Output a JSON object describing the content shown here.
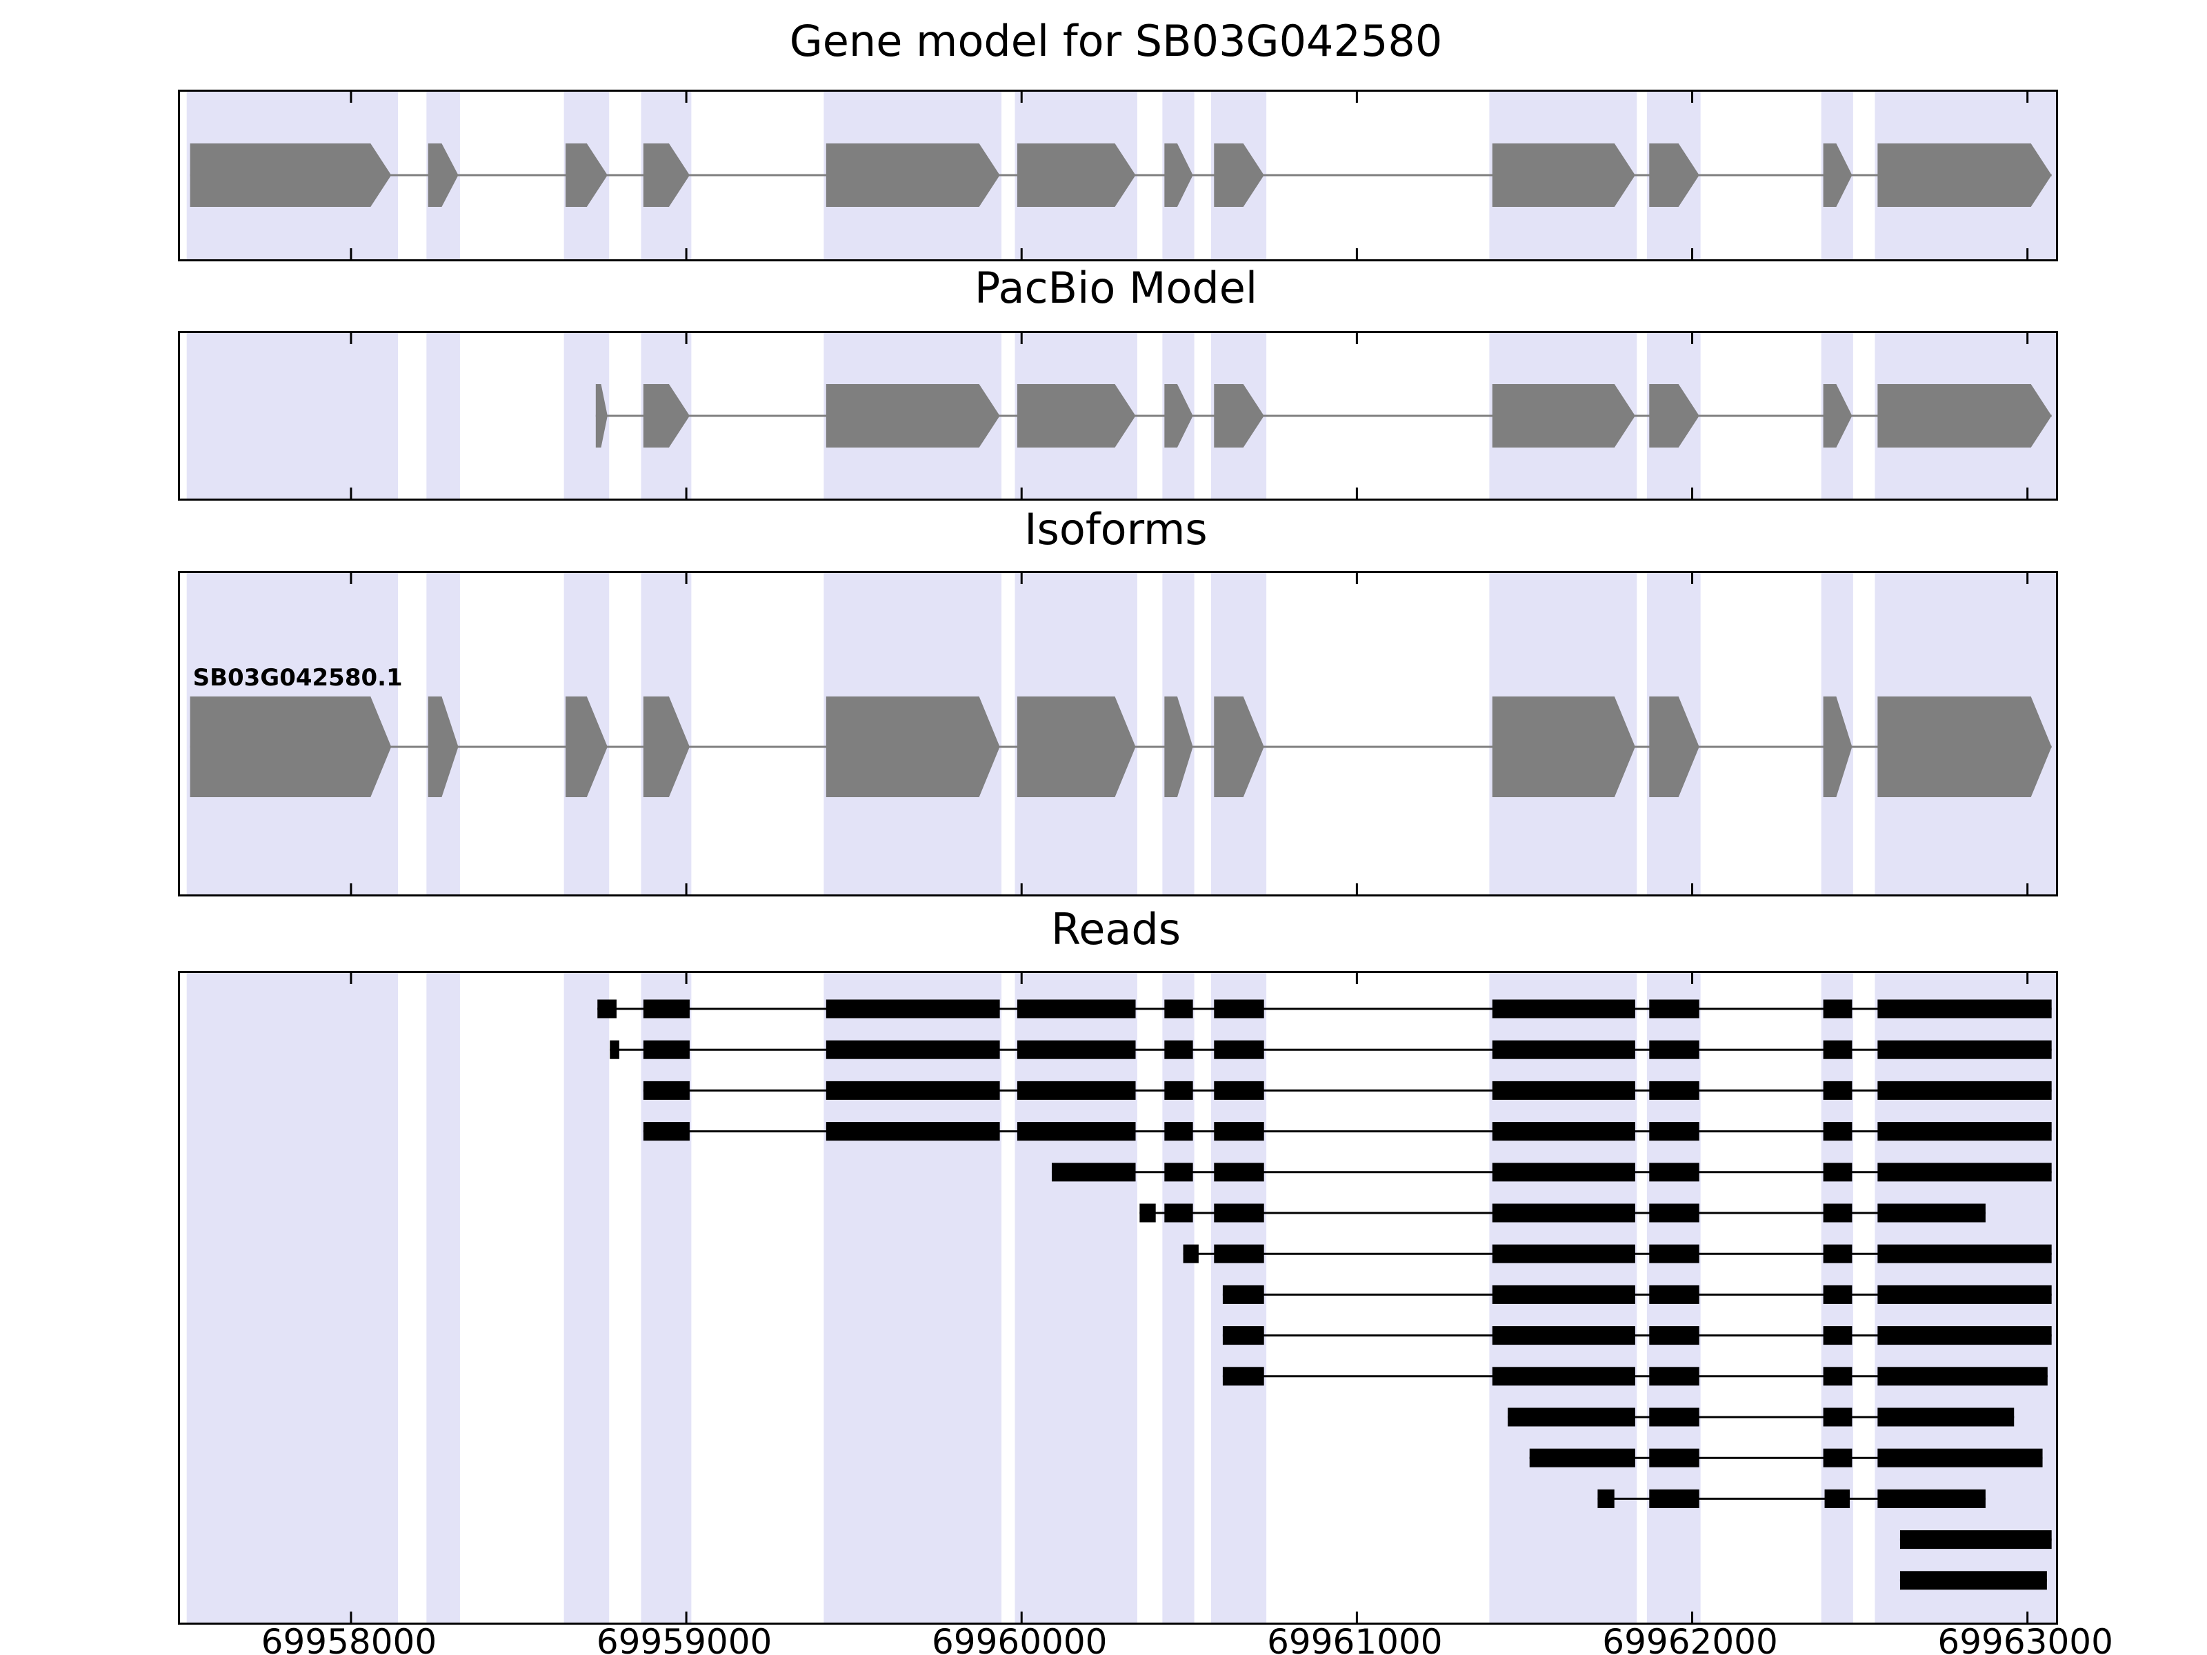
{
  "chart_data": {
    "type": "genome-tracks",
    "description": "Genome browser style figure with four stacked tracks sharing one x axis of genomic coordinates",
    "colors": {
      "band": "#e3e3f7",
      "exon": "#7f7f7f",
      "read": "#000000",
      "frame": "#000000",
      "background": "#ffffff"
    },
    "x_axis": {
      "xmin": 69957490,
      "xmax": 69963085,
      "ticks": [
        69958000,
        69959000,
        69960000,
        69961000,
        69962000,
        69963000
      ],
      "tick_labels": [
        "69958000",
        "69959000",
        "69960000",
        "69961000",
        "69962000",
        "69963000"
      ]
    },
    "bands": [
      [
        69957510,
        69958140
      ],
      [
        69958225,
        69958325
      ],
      [
        69958635,
        69958770
      ],
      [
        69958865,
        69959015
      ],
      [
        69959410,
        69959940
      ],
      [
        69959980,
        69960345
      ],
      [
        69960420,
        69960515
      ],
      [
        69960565,
        69960730
      ],
      [
        69961395,
        69961835
      ],
      [
        69961865,
        69962025
      ],
      [
        69962385,
        69962480
      ],
      [
        69962545,
        69963085
      ]
    ],
    "panels": [
      {
        "id": "gene",
        "title": "Gene model for SB03G042580",
        "type": "model",
        "strand": "+",
        "exons": [
          [
            69957520,
            69958120
          ],
          [
            69958230,
            69958320
          ],
          [
            69958640,
            69958765
          ],
          [
            69958872,
            69959010
          ],
          [
            69959417,
            69959935
          ],
          [
            69959987,
            69960340
          ],
          [
            69960426,
            69960511
          ],
          [
            69960574,
            69960723
          ],
          [
            69961404,
            69961830
          ],
          [
            69961872,
            69962021
          ],
          [
            69962391,
            69962477
          ],
          [
            69962553,
            69963072
          ]
        ]
      },
      {
        "id": "pacbio",
        "title": "PacBio Model",
        "type": "model",
        "strand": "+",
        "exons": [
          [
            69958730,
            69958765
          ],
          [
            69958872,
            69959010
          ],
          [
            69959417,
            69959935
          ],
          [
            69959987,
            69960340
          ],
          [
            69960426,
            69960511
          ],
          [
            69960574,
            69960723
          ],
          [
            69961404,
            69961830
          ],
          [
            69961872,
            69962021
          ],
          [
            69962391,
            69962477
          ],
          [
            69962553,
            69963072
          ]
        ]
      },
      {
        "id": "isoforms",
        "title": "Isoforms",
        "type": "model",
        "strand": "+",
        "label": "SB03G042580.1",
        "exons": [
          [
            69957520,
            69958120
          ],
          [
            69958230,
            69958320
          ],
          [
            69958640,
            69958765
          ],
          [
            69958872,
            69959010
          ],
          [
            69959417,
            69959935
          ],
          [
            69959987,
            69960340
          ],
          [
            69960426,
            69960511
          ],
          [
            69960574,
            69960723
          ],
          [
            69961404,
            69961830
          ],
          [
            69961872,
            69962021
          ],
          [
            69962391,
            69962477
          ],
          [
            69962553,
            69963072
          ]
        ]
      },
      {
        "id": "reads",
        "title": "Reads",
        "type": "reads",
        "reads": [
          {
            "blocks": [
              [
                69958735,
                69958792
              ],
              [
                69958872,
                69959010
              ],
              [
                69959417,
                69959935
              ],
              [
                69959987,
                69960340
              ],
              [
                69960426,
                69960511
              ],
              [
                69960574,
                69960723
              ],
              [
                69961404,
                69961830
              ],
              [
                69961872,
                69962021
              ],
              [
                69962391,
                69962477
              ],
              [
                69962553,
                69963072
              ]
            ]
          },
          {
            "blocks": [
              [
                69958772,
                69958800
              ],
              [
                69958872,
                69959010
              ],
              [
                69959417,
                69959935
              ],
              [
                69959987,
                69960340
              ],
              [
                69960426,
                69960511
              ],
              [
                69960574,
                69960723
              ],
              [
                69961404,
                69961830
              ],
              [
                69961872,
                69962021
              ],
              [
                69962391,
                69962477
              ],
              [
                69962553,
                69963072
              ]
            ]
          },
          {
            "blocks": [
              [
                69958872,
                69959010
              ],
              [
                69959417,
                69959935
              ],
              [
                69959987,
                69960340
              ],
              [
                69960426,
                69960511
              ],
              [
                69960574,
                69960723
              ],
              [
                69961404,
                69961830
              ],
              [
                69961872,
                69962021
              ],
              [
                69962391,
                69962477
              ],
              [
                69962553,
                69963072
              ]
            ]
          },
          {
            "blocks": [
              [
                69958872,
                69959010
              ],
              [
                69959417,
                69959935
              ],
              [
                69959987,
                69960340
              ],
              [
                69960426,
                69960511
              ],
              [
                69960574,
                69960723
              ],
              [
                69961404,
                69961830
              ],
              [
                69961872,
                69962021
              ],
              [
                69962391,
                69962477
              ],
              [
                69962553,
                69963072
              ]
            ]
          },
          {
            "blocks": [
              [
                69960090,
                69960340
              ],
              [
                69960426,
                69960511
              ],
              [
                69960574,
                69960723
              ],
              [
                69961404,
                69961830
              ],
              [
                69961872,
                69962021
              ],
              [
                69962391,
                69962477
              ],
              [
                69962553,
                69963072
              ]
            ]
          },
          {
            "blocks": [
              [
                69960352,
                69960400
              ],
              [
                69960426,
                69960511
              ],
              [
                69960574,
                69960723
              ],
              [
                69961404,
                69961830
              ],
              [
                69961872,
                69962021
              ],
              [
                69962391,
                69962477
              ],
              [
                69962553,
                69962875
              ]
            ]
          },
          {
            "blocks": [
              [
                69960482,
                69960528
              ],
              [
                69960574,
                69960723
              ],
              [
                69961404,
                69961830
              ],
              [
                69961872,
                69962021
              ],
              [
                69962391,
                69962477
              ],
              [
                69962553,
                69963072
              ]
            ]
          },
          {
            "blocks": [
              [
                69960600,
                69960723
              ],
              [
                69961404,
                69961830
              ],
              [
                69961872,
                69962021
              ],
              [
                69962391,
                69962477
              ],
              [
                69962553,
                69963072
              ]
            ]
          },
          {
            "blocks": [
              [
                69960600,
                69960723
              ],
              [
                69961404,
                69961830
              ],
              [
                69961872,
                69962021
              ],
              [
                69962391,
                69962477
              ],
              [
                69962553,
                69963072
              ]
            ]
          },
          {
            "blocks": [
              [
                69960600,
                69960723
              ],
              [
                69961404,
                69961830
              ],
              [
                69961872,
                69962021
              ],
              [
                69962391,
                69962477
              ],
              [
                69962553,
                69963060
              ]
            ]
          },
          {
            "blocks": [
              [
                69961450,
                69961830
              ],
              [
                69961872,
                69962021
              ],
              [
                69962391,
                69962477
              ],
              [
                69962553,
                69962960
              ]
            ]
          },
          {
            "blocks": [
              [
                69961515,
                69961830
              ],
              [
                69961872,
                69962021
              ],
              [
                69962391,
                69962477
              ],
              [
                69962553,
                69963045
              ]
            ]
          },
          {
            "blocks": [
              [
                69961718,
                69961768
              ],
              [
                69961872,
                69962021
              ],
              [
                69962395,
                69962470
              ],
              [
                69962553,
                69962875
              ]
            ]
          },
          {
            "blocks": [
              [
                69962620,
                69963072
              ]
            ]
          },
          {
            "blocks": [
              [
                69962620,
                69963058
              ]
            ]
          }
        ]
      }
    ]
  }
}
